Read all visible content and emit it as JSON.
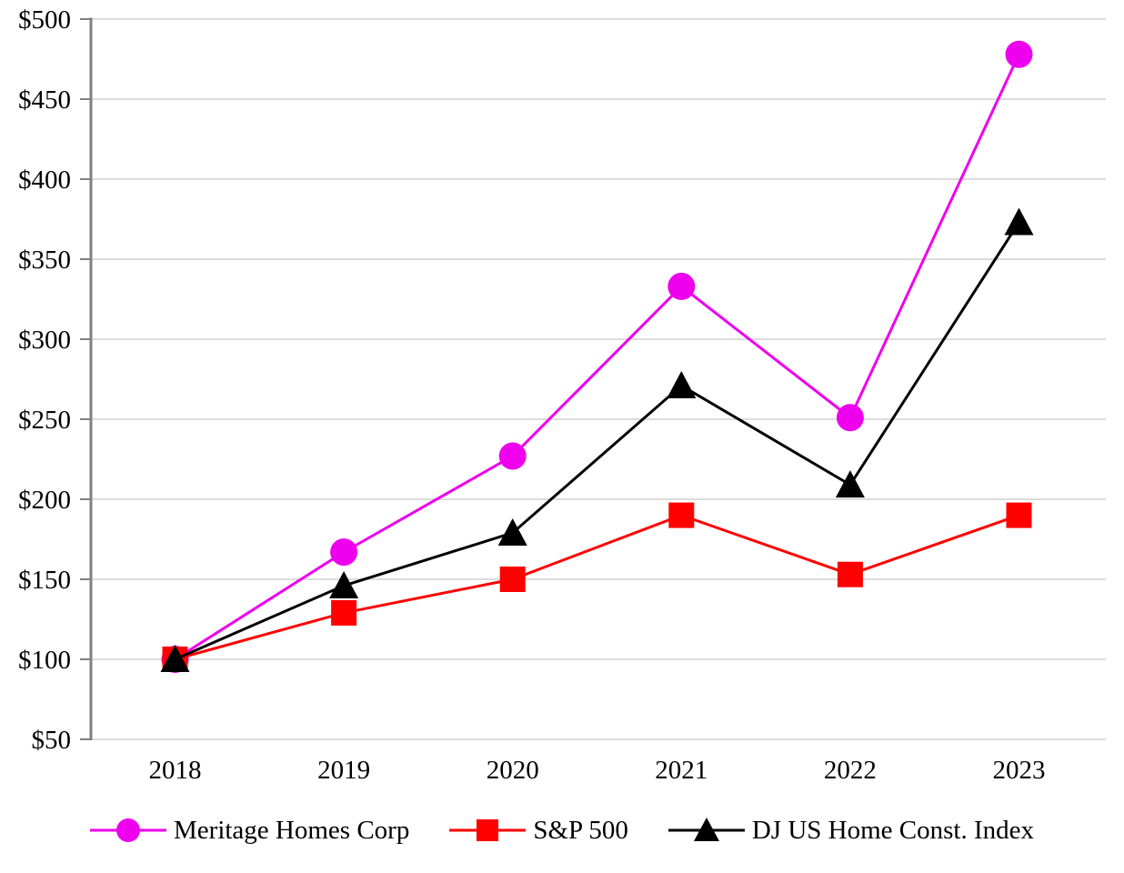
{
  "chart_data": {
    "type": "line",
    "title": "",
    "xlabel": "",
    "ylabel": "",
    "categories": [
      "2018",
      "2019",
      "2020",
      "2021",
      "2022",
      "2023"
    ],
    "series": [
      {
        "name": "Meritage Homes Corp",
        "marker": "circle",
        "color": "#EE00EE",
        "values": [
          100,
          167,
          227,
          333,
          251,
          478
        ]
      },
      {
        "name": "S&P 500",
        "marker": "square",
        "color": "#FF0000",
        "values": [
          100,
          129,
          150,
          190,
          153,
          190
        ]
      },
      {
        "name": "DJ US Home Const. Index",
        "marker": "triangle",
        "color": "#000000",
        "values": [
          100,
          146,
          179,
          271,
          209,
          373
        ]
      }
    ],
    "ylim": [
      50,
      500
    ],
    "y_ticks": [
      50,
      100,
      150,
      200,
      250,
      300,
      350,
      400,
      450,
      500
    ],
    "y_tick_prefix": "$",
    "grid": "horizontal-only",
    "legend_position": "bottom",
    "axis_color": "#808080",
    "grid_color": "#DCDCDC",
    "background": "#FFFFFF"
  }
}
